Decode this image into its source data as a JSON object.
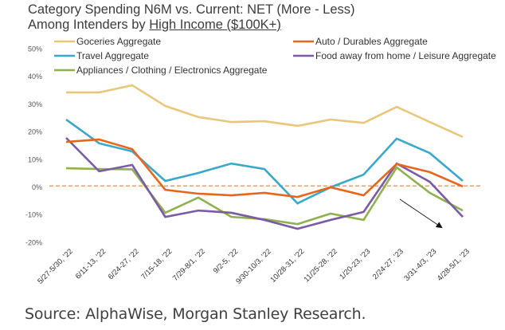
{
  "chart_data": {
    "type": "line",
    "title_line1": "Category Spending N6M vs. Current: NET (More - Less)",
    "title_line2_prefix": "Among Intenders by ",
    "title_line2_underlined": "High Income ($100K+)",
    "xlabel": "",
    "ylabel": "",
    "ylim": [
      -20,
      50
    ],
    "yticks": [
      50,
      40,
      30,
      20,
      10,
      0,
      -10,
      -20
    ],
    "ytick_labels": [
      "50%",
      "40%",
      "30%",
      "20%",
      "10%",
      "0%",
      "-10%",
      "-20%"
    ],
    "grid": false,
    "categories": [
      "5/27-5/30, '22",
      "6/11-13, '22",
      "6/24-27, '22",
      "7/15-18, '22",
      "7/29-8/1, '22",
      "9/2-5, '22",
      "9/30-10/3, '22",
      "10/28-31, '22",
      "11/25-28, '22",
      "1/20-23, '23",
      "2/24-27, '23",
      "3/31-4/3, '23",
      "4/28-5/1, '23"
    ],
    "series": [
      {
        "name": "Goceries Aggregate",
        "color": "#E8C77A",
        "values": [
          34.3,
          34.3,
          36.9,
          29.4,
          25.4,
          23.6,
          23.9,
          22.2,
          24.5,
          23.3,
          29.1,
          23.6,
          18.2
        ]
      },
      {
        "name": "Auto / Durables Aggregate",
        "color": "#E8661C",
        "values": [
          16.4,
          17.3,
          13.8,
          -0.9,
          -2.3,
          -2.9,
          -2.0,
          -3.5,
          0.0,
          -2.9,
          8.4,
          5.5,
          0.3
        ]
      },
      {
        "name": "Travel Aggregate",
        "color": "#3AA8C8",
        "values": [
          24.5,
          15.9,
          13.0,
          2.3,
          5.2,
          8.6,
          6.6,
          -5.8,
          0.0,
          4.6,
          17.6,
          12.4,
          2.3
        ]
      },
      {
        "name": "Food away from home / Leisure Aggregate",
        "color": "#7B5AA6",
        "values": [
          17.9,
          5.8,
          8.1,
          -10.7,
          -8.4,
          -9.2,
          -11.8,
          -15.0,
          -11.8,
          -8.9,
          8.6,
          2.0,
          -10.7
        ]
      },
      {
        "name": "Appliances / Clothing / Electronics Aggregate",
        "color": "#8FB14F",
        "values": [
          6.9,
          6.6,
          6.5,
          -9.2,
          -3.7,
          -10.7,
          -11.5,
          -13.3,
          -9.5,
          -11.8,
          7.2,
          -2.0,
          -8.4
        ]
      }
    ],
    "reference_line": {
      "value": 0.5,
      "color": "#F0A060",
      "style": "dashed"
    },
    "annotation": {
      "type": "arrow",
      "direction": "down-right",
      "near": "3/31-4/3, '23"
    },
    "legend": {
      "placement": "top",
      "columns": [
        [
          "Goceries Aggregate",
          "Travel Aggregate",
          "Appliances / Clothing / Electronics Aggregate"
        ],
        [
          "Auto / Durables Aggregate",
          "Food away from home / Leisure Aggregate"
        ]
      ]
    }
  },
  "footer": {
    "source": "Source: AlphaWise, Morgan Stanley Research."
  }
}
